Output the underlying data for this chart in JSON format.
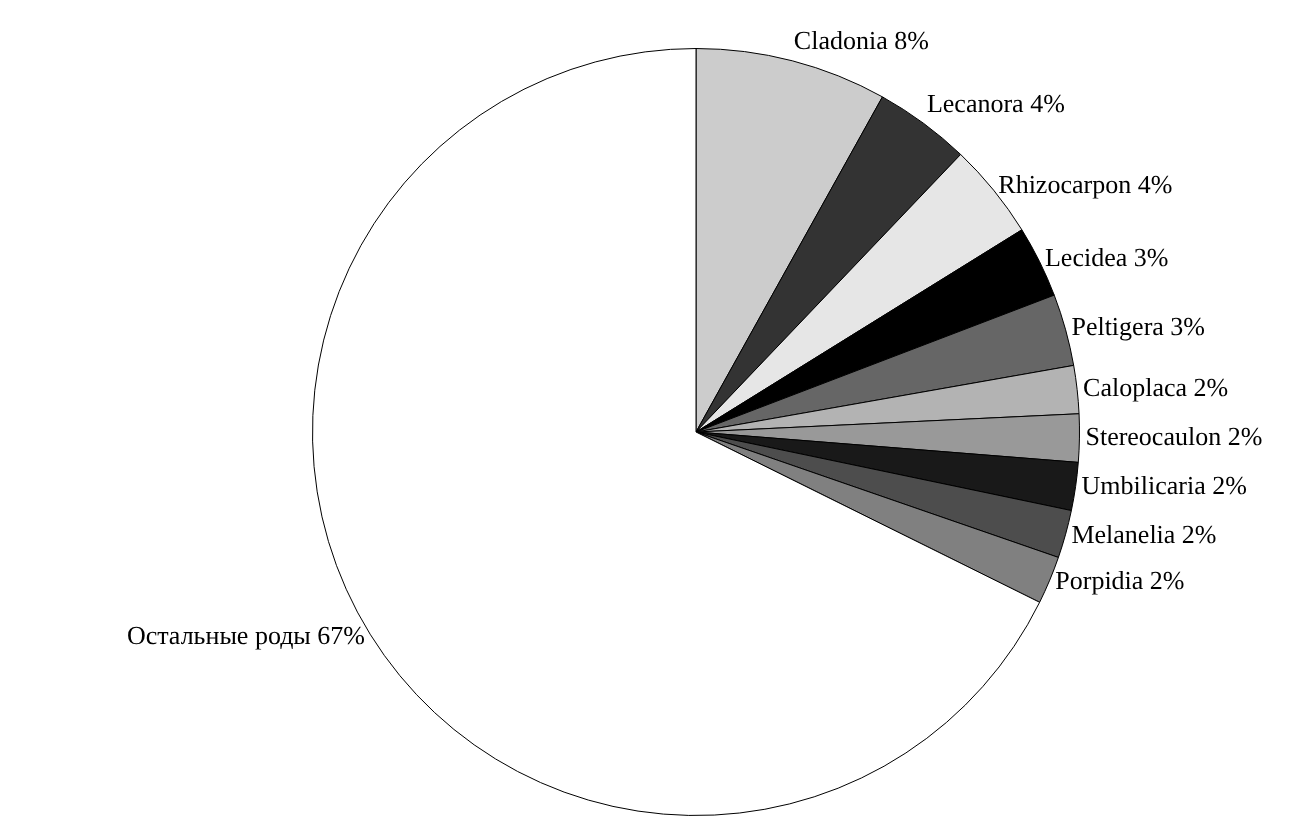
{
  "chart_data": {
    "type": "pie",
    "categories": [
      "Cladonia",
      "Lecanora",
      "Rhizocarpon",
      "Lecidea",
      "Peltigera",
      "Caloplaca",
      "Stereocaulon",
      "Umbilicaria",
      "Melanelia",
      "Porpidia",
      "Остальные роды"
    ],
    "values": [
      8,
      4,
      4,
      3,
      3,
      2,
      2,
      2,
      2,
      2,
      67
    ],
    "value_labels": [
      "8%",
      "4%",
      "4%",
      "3%",
      "3%",
      "2%",
      "2%",
      "2%",
      "2%",
      "2%",
      "67%"
    ],
    "colors": [
      "#cccccc",
      "#333333",
      "#e6e6e6",
      "#000000",
      "#666666",
      "#b3b3b3",
      "#999999",
      "#191919",
      "#4d4d4d",
      "#808080",
      "#ffffff"
    ],
    "legend": false
  }
}
